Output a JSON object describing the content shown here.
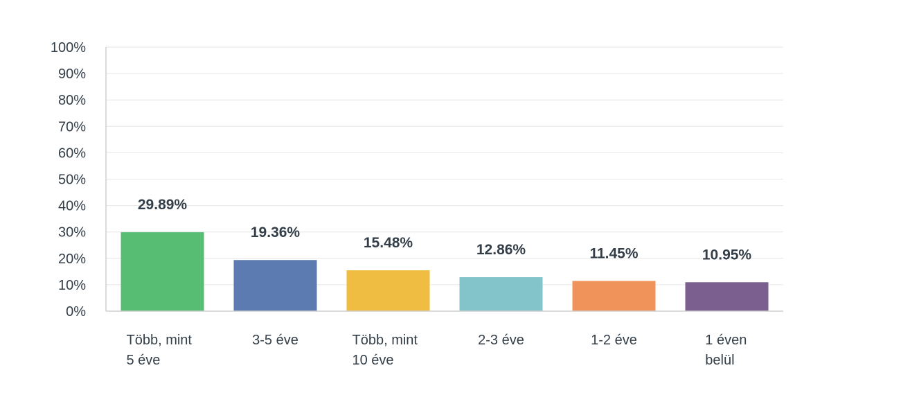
{
  "chart_data": {
    "type": "bar",
    "categories": [
      [
        "Több, mint",
        "5 éve"
      ],
      [
        "3-5 éve"
      ],
      [
        "Több, mint",
        "10 éve"
      ],
      [
        "2-3 éve"
      ],
      [
        "1-2 éve"
      ],
      [
        "1 éven",
        "belül"
      ]
    ],
    "values": [
      29.89,
      19.36,
      15.48,
      12.86,
      11.45,
      10.95
    ],
    "value_labels": [
      "29.89%",
      "19.36%",
      "15.48%",
      "12.86%",
      "11.45%",
      "10.95%"
    ],
    "colors": [
      "#57bd72",
      "#5c7bb0",
      "#efbd42",
      "#82c4c9",
      "#ef935b",
      "#7b5f8f"
    ],
    "ylim": [
      0,
      100
    ],
    "yticks": [
      "0%",
      "10%",
      "20%",
      "30%",
      "40%",
      "50%",
      "60%",
      "70%",
      "80%",
      "90%",
      "100%"
    ],
    "grid": true,
    "title": "",
    "xlabel": "",
    "ylabel": ""
  }
}
